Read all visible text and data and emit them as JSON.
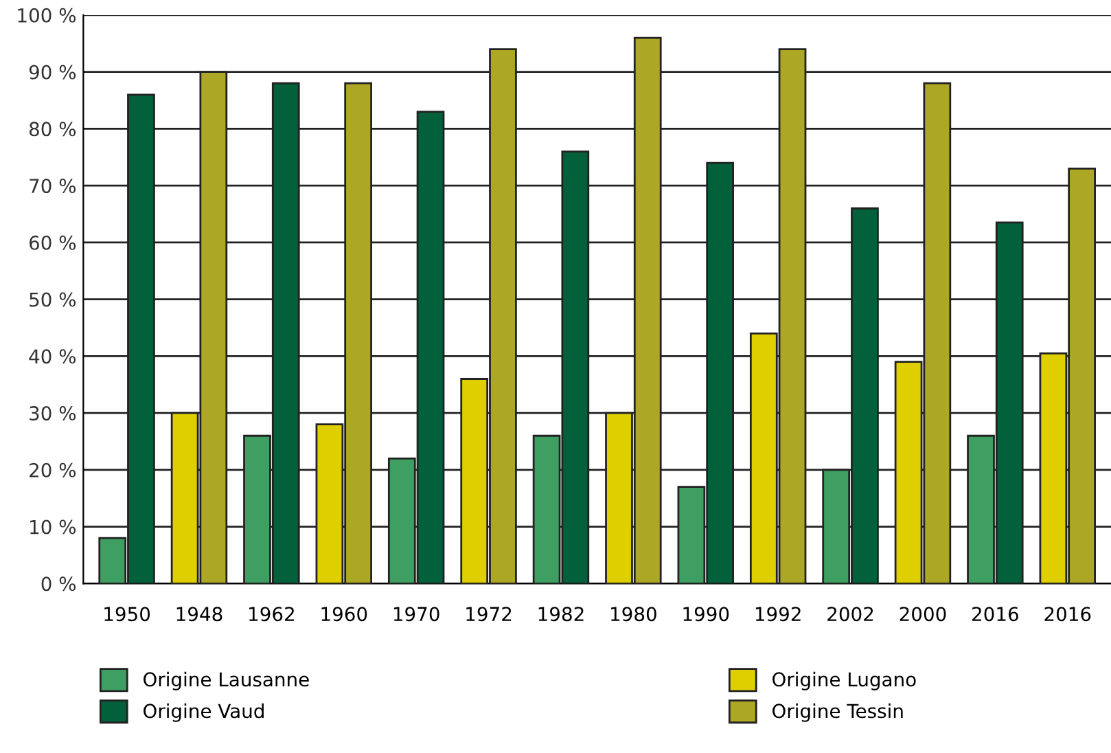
{
  "chart_data": {
    "type": "bar",
    "categories": [
      "1950",
      "1948",
      "1962",
      "1960",
      "1970",
      "1972",
      "1982",
      "1980",
      "1990",
      "1992",
      "2002",
      "2000",
      "2016",
      "2016"
    ],
    "series": [
      {
        "name": "Origine Lausanne",
        "color": "#3f9f63",
        "values": [
          8,
          null,
          26,
          null,
          22,
          null,
          26,
          null,
          17,
          null,
          20,
          null,
          26,
          null
        ]
      },
      {
        "name": "Origine Vaud",
        "color": "#02603a",
        "values": [
          86,
          null,
          88,
          null,
          83,
          null,
          76,
          null,
          74,
          null,
          66,
          null,
          63.5,
          null
        ]
      },
      {
        "name": "Origine Lugano",
        "color": "#e0cf00",
        "values": [
          null,
          30,
          null,
          28,
          null,
          36,
          null,
          30,
          null,
          44,
          null,
          39,
          null,
          40.5
        ]
      },
      {
        "name": "Origine Tessin",
        "color": "#aca724",
        "values": [
          null,
          90,
          null,
          88,
          null,
          94,
          null,
          96,
          null,
          94,
          null,
          88,
          null,
          73
        ]
      }
    ],
    "ylim": [
      0,
      100
    ],
    "yticks": [
      {
        "value": 0,
        "label": "0 %"
      },
      {
        "value": 10,
        "label": "10 %"
      },
      {
        "value": 20,
        "label": "20 %"
      },
      {
        "value": 30,
        "label": "30 %"
      },
      {
        "value": 40,
        "label": "40 %"
      },
      {
        "value": 50,
        "label": "50 %"
      },
      {
        "value": 60,
        "label": "60 %"
      },
      {
        "value": 70,
        "label": "70 %"
      },
      {
        "value": 80,
        "label": "80 %"
      },
      {
        "value": 90,
        "label": "90 %"
      },
      {
        "value": 100,
        "label": "100 %"
      }
    ],
    "grid": "y",
    "legend": "bottom"
  }
}
